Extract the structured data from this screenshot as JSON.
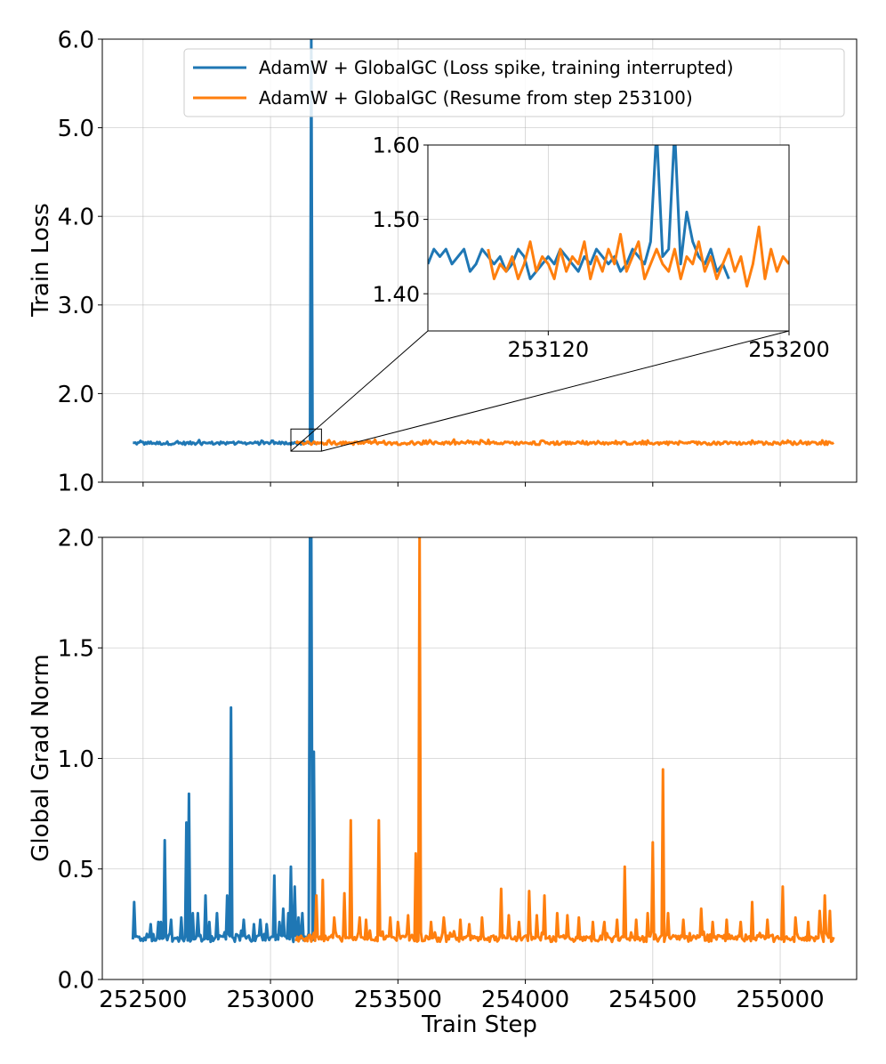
{
  "chart_data": [
    {
      "id": "loss",
      "type": "line",
      "title": "",
      "xlabel": "",
      "ylabel": "Train Loss",
      "xlim": [
        252340,
        255300
      ],
      "ylim": [
        1.0,
        6.0
      ],
      "yticks": [
        1.0,
        2.0,
        3.0,
        4.0,
        5.0,
        6.0
      ],
      "ytick_labels": [
        "1.0",
        "2.0",
        "3.0",
        "4.0",
        "5.0",
        "6.0"
      ],
      "grid": true,
      "legend": {
        "position": "top-right",
        "entries": [
          {
            "label": "AdamW + GlobalGC (Loss spike, training interrupted)",
            "color": "#1f77b4"
          },
          {
            "label": "AdamW + GlobalGC (Resume from step 253100)",
            "color": "#ff7f0e"
          }
        ]
      },
      "series": [
        {
          "name": "AdamW + GlobalGC (Loss spike, training interrupted)",
          "color": "#1f77b4",
          "x_range": [
            252460,
            253180
          ],
          "baseline": 1.44,
          "spikes": [
            {
              "x": 253160,
              "y": 6.0
            }
          ]
        },
        {
          "name": "AdamW + GlobalGC (Resume from step 253100)",
          "color": "#ff7f0e",
          "x_range": [
            253100,
            255210
          ],
          "baseline": 1.44,
          "spikes": []
        }
      ],
      "inset": {
        "xlim": [
          253080,
          253200
        ],
        "ylim": [
          1.35,
          1.6
        ],
        "xticks": [
          253120,
          253200
        ],
        "xtick_labels": [
          "253120",
          "253200"
        ],
        "yticks": [
          1.4,
          1.5,
          1.6
        ],
        "ytick_labels": [
          "1.40",
          "1.50",
          "1.60"
        ],
        "zoom_region": {
          "x": [
            253080,
            253200
          ],
          "y": [
            1.35,
            1.6
          ]
        },
        "series": [
          {
            "name": "blue",
            "x": [
              253080,
              253082,
              253084,
              253086,
              253088,
              253090,
              253092,
              253094,
              253096,
              253098,
              253100,
              253102,
              253104,
              253106,
              253108,
              253110,
              253112,
              253114,
              253116,
              253118,
              253120,
              253122,
              253124,
              253126,
              253128,
              253130,
              253132,
              253134,
              253136,
              253138,
              253140,
              253142,
              253144,
              253146,
              253148,
              253150,
              253152,
              253154,
              253156,
              253158,
              253160,
              253162,
              253164,
              253166,
              253168,
              253170,
              253172,
              253174,
              253176,
              253178,
              253180
            ],
            "y": [
              1.44,
              1.46,
              1.45,
              1.46,
              1.44,
              1.45,
              1.46,
              1.43,
              1.44,
              1.46,
              1.45,
              1.44,
              1.45,
              1.43,
              1.44,
              1.46,
              1.45,
              1.42,
              1.43,
              1.44,
              1.45,
              1.44,
              1.46,
              1.45,
              1.44,
              1.43,
              1.45,
              1.44,
              1.46,
              1.45,
              1.44,
              1.45,
              1.43,
              1.44,
              1.46,
              1.45,
              1.44,
              1.47,
              1.62,
              1.45,
              1.46,
              1.62,
              1.44,
              1.51,
              1.47,
              1.45,
              1.44,
              1.46,
              1.43,
              1.44,
              1.42
            ]
          },
          {
            "name": "orange",
            "x": [
              253100,
              253102,
              253104,
              253106,
              253108,
              253110,
              253112,
              253114,
              253116,
              253118,
              253120,
              253122,
              253124,
              253126,
              253128,
              253130,
              253132,
              253134,
              253136,
              253138,
              253140,
              253142,
              253144,
              253146,
              253148,
              253150,
              253152,
              253154,
              253156,
              253158,
              253160,
              253162,
              253164,
              253166,
              253168,
              253170,
              253172,
              253174,
              253176,
              253178,
              253180,
              253182,
              253184,
              253186,
              253188,
              253190,
              253192,
              253194,
              253196,
              253198,
              253200
            ],
            "y": [
              1.46,
              1.42,
              1.44,
              1.43,
              1.45,
              1.42,
              1.44,
              1.47,
              1.43,
              1.45,
              1.44,
              1.42,
              1.46,
              1.43,
              1.45,
              1.44,
              1.47,
              1.42,
              1.45,
              1.43,
              1.46,
              1.44,
              1.48,
              1.43,
              1.45,
              1.47,
              1.42,
              1.44,
              1.46,
              1.44,
              1.43,
              1.46,
              1.42,
              1.45,
              1.44,
              1.47,
              1.43,
              1.45,
              1.42,
              1.44,
              1.46,
              1.43,
              1.45,
              1.41,
              1.44,
              1.49,
              1.42,
              1.46,
              1.43,
              1.45,
              1.44
            ]
          }
        ]
      }
    },
    {
      "id": "gradnorm",
      "type": "line",
      "title": "",
      "xlabel": "Train Step",
      "ylabel": "Global Grad Norm",
      "xlim": [
        252340,
        255300
      ],
      "ylim": [
        0.0,
        2.0
      ],
      "xticks": [
        252500,
        253000,
        253500,
        254000,
        254500,
        255000
      ],
      "xtick_labels": [
        "252500",
        "253000",
        "253500",
        "254000",
        "254500",
        "255000"
      ],
      "yticks": [
        0.0,
        0.5,
        1.0,
        1.5,
        2.0
      ],
      "ytick_labels": [
        "0.0",
        "0.5",
        "1.0",
        "1.5",
        "2.0"
      ],
      "grid": true,
      "series": [
        {
          "name": "AdamW + GlobalGC (Loss spike, training interrupted)",
          "color": "#1f77b4",
          "x_range": [
            252460,
            253180
          ],
          "baseline": 0.185,
          "spikes": [
            {
              "x": 252465,
              "y": 0.35
            },
            {
              "x": 252530,
              "y": 0.25
            },
            {
              "x": 252560,
              "y": 0.26
            },
            {
              "x": 252570,
              "y": 0.26
            },
            {
              "x": 252585,
              "y": 0.63
            },
            {
              "x": 252610,
              "y": 0.27
            },
            {
              "x": 252650,
              "y": 0.28
            },
            {
              "x": 252670,
              "y": 0.71
            },
            {
              "x": 252680,
              "y": 0.84
            },
            {
              "x": 252695,
              "y": 0.3
            },
            {
              "x": 252715,
              "y": 0.3
            },
            {
              "x": 252745,
              "y": 0.38
            },
            {
              "x": 252760,
              "y": 0.26
            },
            {
              "x": 252790,
              "y": 0.3
            },
            {
              "x": 252830,
              "y": 0.38
            },
            {
              "x": 252845,
              "y": 1.23
            },
            {
              "x": 252895,
              "y": 0.27
            },
            {
              "x": 252935,
              "y": 0.25
            },
            {
              "x": 252960,
              "y": 0.27
            },
            {
              "x": 252985,
              "y": 0.25
            },
            {
              "x": 253015,
              "y": 0.47
            },
            {
              "x": 253035,
              "y": 0.26
            },
            {
              "x": 253050,
              "y": 0.32
            },
            {
              "x": 253070,
              "y": 0.3
            },
            {
              "x": 253080,
              "y": 0.51
            },
            {
              "x": 253095,
              "y": 0.42
            },
            {
              "x": 253110,
              "y": 0.28
            },
            {
              "x": 253125,
              "y": 0.3
            },
            {
              "x": 253155,
              "y": 2.0
            },
            {
              "x": 253160,
              "y": 2.0
            },
            {
              "x": 253170,
              "y": 1.03
            }
          ]
        },
        {
          "name": "AdamW + GlobalGC (Resume from step 253100)",
          "color": "#ff7f0e",
          "x_range": [
            253100,
            255210
          ],
          "baseline": 0.185,
          "spikes": [
            {
              "x": 253180,
              "y": 0.38
            },
            {
              "x": 253205,
              "y": 0.45
            },
            {
              "x": 253250,
              "y": 0.28
            },
            {
              "x": 253290,
              "y": 0.39
            },
            {
              "x": 253315,
              "y": 0.72
            },
            {
              "x": 253350,
              "y": 0.28
            },
            {
              "x": 253375,
              "y": 0.27
            },
            {
              "x": 253425,
              "y": 0.72
            },
            {
              "x": 253470,
              "y": 0.28
            },
            {
              "x": 253500,
              "y": 0.26
            },
            {
              "x": 253540,
              "y": 0.29
            },
            {
              "x": 253570,
              "y": 0.57
            },
            {
              "x": 253585,
              "y": 2.0
            },
            {
              "x": 253630,
              "y": 0.26
            },
            {
              "x": 253680,
              "y": 0.28
            },
            {
              "x": 253745,
              "y": 0.27
            },
            {
              "x": 253780,
              "y": 0.25
            },
            {
              "x": 253830,
              "y": 0.28
            },
            {
              "x": 253905,
              "y": 0.41
            },
            {
              "x": 253935,
              "y": 0.29
            },
            {
              "x": 253975,
              "y": 0.26
            },
            {
              "x": 254015,
              "y": 0.4
            },
            {
              "x": 254045,
              "y": 0.29
            },
            {
              "x": 254075,
              "y": 0.38
            },
            {
              "x": 254125,
              "y": 0.3
            },
            {
              "x": 254165,
              "y": 0.29
            },
            {
              "x": 254210,
              "y": 0.28
            },
            {
              "x": 254265,
              "y": 0.26
            },
            {
              "x": 254310,
              "y": 0.26
            },
            {
              "x": 254360,
              "y": 0.27
            },
            {
              "x": 254390,
              "y": 0.51
            },
            {
              "x": 254435,
              "y": 0.27
            },
            {
              "x": 254480,
              "y": 0.3
            },
            {
              "x": 254500,
              "y": 0.62
            },
            {
              "x": 254540,
              "y": 0.95
            },
            {
              "x": 254560,
              "y": 0.3
            },
            {
              "x": 254620,
              "y": 0.27
            },
            {
              "x": 254690,
              "y": 0.32
            },
            {
              "x": 254735,
              "y": 0.26
            },
            {
              "x": 254790,
              "y": 0.27
            },
            {
              "x": 254845,
              "y": 0.26
            },
            {
              "x": 254890,
              "y": 0.35
            },
            {
              "x": 254950,
              "y": 0.27
            },
            {
              "x": 255010,
              "y": 0.42
            },
            {
              "x": 255060,
              "y": 0.28
            },
            {
              "x": 255110,
              "y": 0.26
            },
            {
              "x": 255155,
              "y": 0.31
            },
            {
              "x": 255175,
              "y": 0.38
            },
            {
              "x": 255195,
              "y": 0.31
            }
          ]
        }
      ]
    }
  ]
}
